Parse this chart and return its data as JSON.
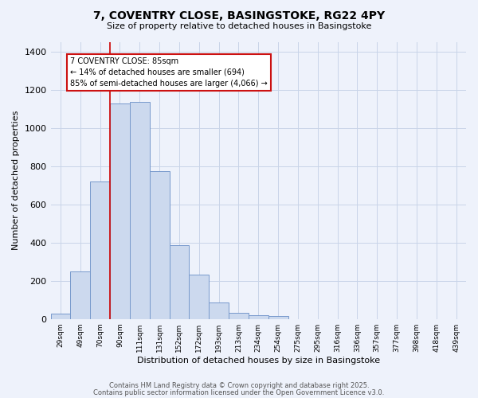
{
  "title": "7, COVENTRY CLOSE, BASINGSTOKE, RG22 4PY",
  "subtitle": "Size of property relative to detached houses in Basingstoke",
  "xlabel": "Distribution of detached houses by size in Basingstoke",
  "ylabel": "Number of detached properties",
  "bar_labels": [
    "29sqm",
    "49sqm",
    "70sqm",
    "90sqm",
    "111sqm",
    "131sqm",
    "152sqm",
    "172sqm",
    "193sqm",
    "213sqm",
    "234sqm",
    "254sqm",
    "275sqm",
    "295sqm",
    "316sqm",
    "336sqm",
    "357sqm",
    "377sqm",
    "398sqm",
    "418sqm",
    "439sqm"
  ],
  "bar_values": [
    30,
    247,
    720,
    1128,
    1136,
    775,
    385,
    234,
    88,
    32,
    18,
    15,
    0,
    0,
    0,
    0,
    0,
    0,
    0,
    0,
    0
  ],
  "bar_color": "#ccd9ee",
  "bar_edge_color": "#7799cc",
  "ylim": [
    0,
    1450
  ],
  "yticks": [
    0,
    200,
    400,
    600,
    800,
    1000,
    1200,
    1400
  ],
  "vline_color": "#cc0000",
  "annotation_text_line1": "7 COVENTRY CLOSE: 85sqm",
  "annotation_text_line2": "← 14% of detached houses are smaller (694)",
  "annotation_text_line3": "85% of semi-detached houses are larger (4,066) →",
  "bg_color": "#eef2fb",
  "grid_color": "#c8d4e8",
  "footer_line1": "Contains HM Land Registry data © Crown copyright and database right 2025.",
  "footer_line2": "Contains public sector information licensed under the Open Government Licence v3.0."
}
